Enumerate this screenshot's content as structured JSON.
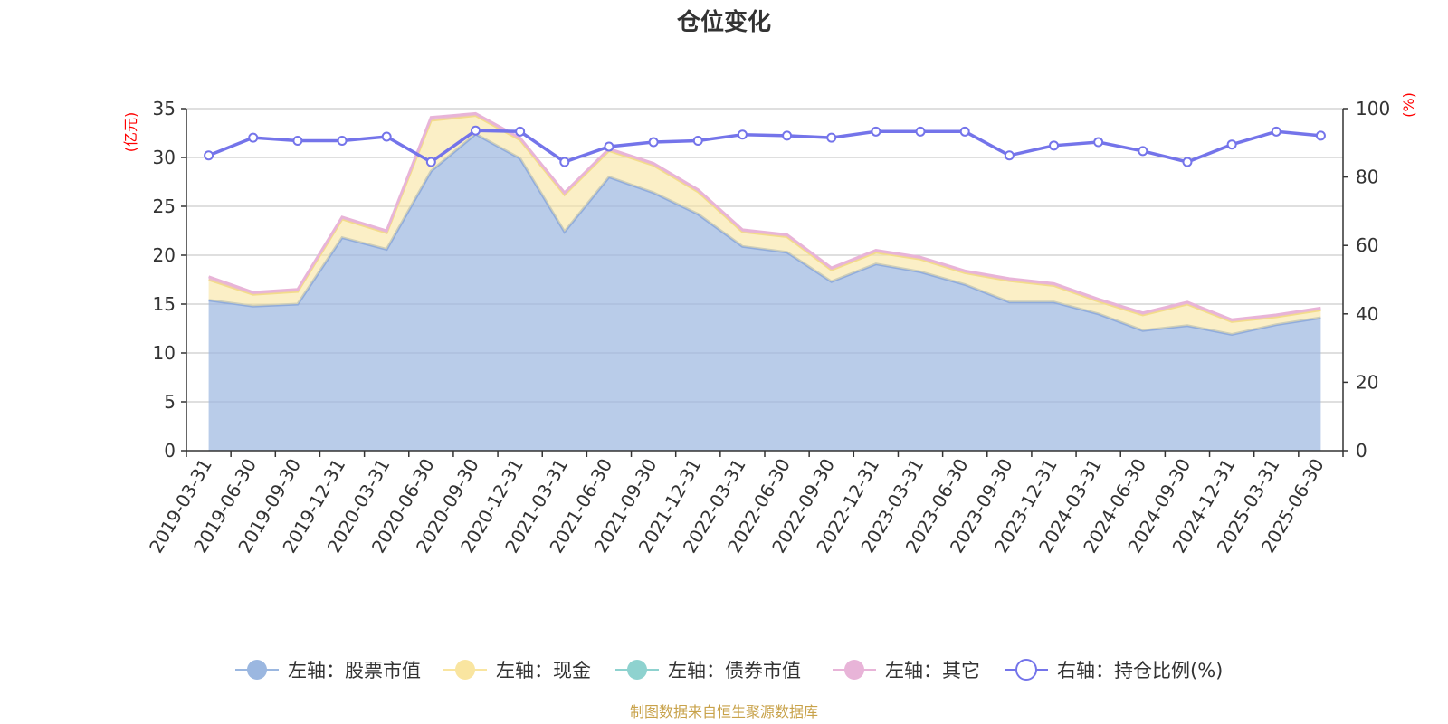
{
  "chart_data": {
    "type": "area",
    "title": "仓位变化",
    "y_left_unit": "(亿元)",
    "y_right_unit": "(%)",
    "ylim_left": [
      0,
      35
    ],
    "ylim_right": [
      0,
      100
    ],
    "yticks_left": [
      "0",
      "5",
      "10",
      "15",
      "20",
      "25",
      "30",
      "35"
    ],
    "yticks_right": [
      "0",
      "20",
      "40",
      "60",
      "80",
      "100"
    ],
    "grid": true,
    "legend_position": "bottom",
    "stacked": true,
    "categories": [
      "2019-03-31",
      "2019-06-30",
      "2019-09-30",
      "2019-12-31",
      "2020-03-31",
      "2020-06-30",
      "2020-09-30",
      "2020-12-31",
      "2021-03-31",
      "2021-06-30",
      "2021-09-30",
      "2021-12-31",
      "2022-03-31",
      "2022-06-30",
      "2022-09-30",
      "2022-12-31",
      "2023-03-31",
      "2023-06-30",
      "2023-09-30",
      "2023-12-31",
      "2024-03-31",
      "2024-06-30",
      "2024-09-30",
      "2024-12-31",
      "2025-03-31",
      "2025-06-30"
    ],
    "series": [
      {
        "name": "左轴：股票市值",
        "axis": "left",
        "color": "#9bb7e0",
        "values": [
          15.4,
          14.8,
          15.0,
          21.8,
          20.6,
          28.6,
          32.4,
          29.9,
          22.4,
          28.0,
          26.4,
          24.2,
          20.9,
          20.3,
          17.3,
          19.1,
          18.3,
          17.0,
          15.2,
          15.2,
          14.0,
          12.3,
          12.8,
          11.9,
          12.9,
          13.6
        ]
      },
      {
        "name": "左轴：现金",
        "axis": "left",
        "color": "#f9e5a0",
        "values": [
          2.1,
          1.2,
          1.3,
          1.9,
          1.7,
          5.2,
          1.9,
          1.9,
          3.8,
          2.7,
          2.8,
          2.3,
          1.5,
          1.6,
          1.2,
          1.2,
          1.3,
          1.2,
          2.2,
          1.7,
          1.3,
          1.6,
          2.2,
          1.3,
          0.8,
          0.8
        ]
      },
      {
        "name": "左轴：债券市值",
        "axis": "left",
        "color": "#8ed2cf",
        "values": [
          0,
          0,
          0,
          0,
          0,
          0,
          0,
          0,
          0,
          0,
          0,
          0,
          0,
          0,
          0,
          0,
          0,
          0,
          0,
          0,
          0,
          0,
          0,
          0,
          0,
          0
        ]
      },
      {
        "name": "左轴：其它",
        "axis": "left",
        "color": "#e8b4d8",
        "values": [
          0.3,
          0.2,
          0.2,
          0.2,
          0.2,
          0.3,
          0.2,
          0.2,
          0.2,
          0.2,
          0.2,
          0.2,
          0.2,
          0.2,
          0.2,
          0.2,
          0.2,
          0.2,
          0.2,
          0.2,
          0.2,
          0.2,
          0.2,
          0.2,
          0.2,
          0.2
        ]
      },
      {
        "name": "右轴：持仓比例(%)",
        "axis": "right",
        "color": "#7474ea",
        "values": [
          86.3,
          91.5,
          90.6,
          90.6,
          91.8,
          84.4,
          93.6,
          93.3,
          84.4,
          88.9,
          90.2,
          90.6,
          92.4,
          92.1,
          91.5,
          93.3,
          93.3,
          93.3,
          86.3,
          89.2,
          90.2,
          87.6,
          84.4,
          89.5,
          93.3,
          92.1
        ]
      }
    ]
  },
  "source_text": "制图数据来自恒生聚源数据库"
}
